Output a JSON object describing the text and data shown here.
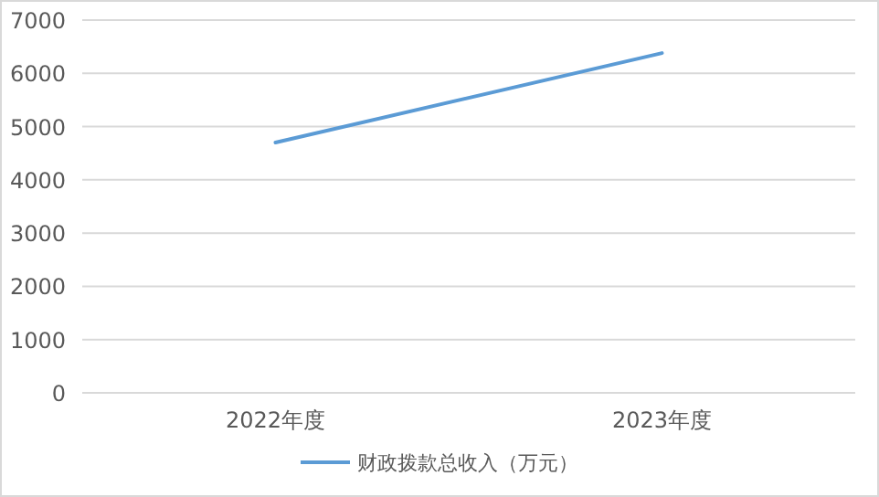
{
  "chart_data": {
    "type": "line",
    "categories": [
      "2022年度",
      "2023年度"
    ],
    "series": [
      {
        "name": "财政拨款总收入（万元）",
        "color": "#5b9bd5",
        "values": [
          4700,
          6380
        ]
      }
    ],
    "ylim": [
      0,
      7000
    ],
    "yticks": [
      0,
      1000,
      2000,
      3000,
      4000,
      5000,
      6000,
      7000
    ],
    "grid": "y",
    "legend": "bottom",
    "marker": "none",
    "line_style": "solid"
  }
}
